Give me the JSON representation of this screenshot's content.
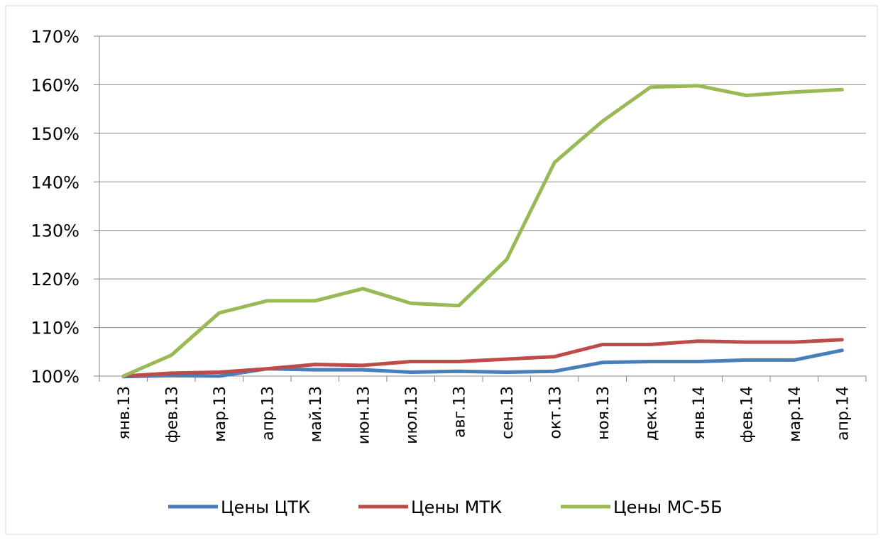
{
  "chart_data": {
    "type": "line",
    "categories": [
      "янв.13",
      "фев.13",
      "мар.13",
      "апр.13",
      "май.13",
      "июн.13",
      "июл.13",
      "авг.13",
      "сен.13",
      "окт.13",
      "ноя.13",
      "дек.13",
      "янв.14",
      "фев.14",
      "мар.14",
      "апр.14"
    ],
    "series": [
      {
        "name": "Цены ЦТК",
        "color": "#4a7ebb",
        "values": [
          99.9,
          100.1,
          100,
          101.5,
          101.3,
          101.3,
          100.8,
          101,
          100.8,
          101,
          102.8,
          103,
          103,
          103.3,
          103.3,
          105.3
        ]
      },
      {
        "name": "Цены МТК",
        "color": "#be4b48",
        "values": [
          100,
          100.6,
          100.8,
          101.5,
          102.4,
          102.2,
          103,
          103,
          103.5,
          104,
          106.5,
          106.5,
          107.2,
          107,
          107,
          107.5
        ]
      },
      {
        "name": "Цены МС-5Б",
        "color": "#98b954",
        "values": [
          100,
          104.3,
          113,
          115.5,
          115.5,
          118,
          115,
          114.5,
          124,
          144,
          152.5,
          159.5,
          159.8,
          157.8,
          158.5,
          159
        ]
      }
    ],
    "ylim": [
      100,
      170
    ],
    "yticks": [
      {
        "value": 100,
        "label": "100%"
      },
      {
        "value": 110,
        "label": "110%"
      },
      {
        "value": 120,
        "label": "120%"
      },
      {
        "value": 130,
        "label": "130%"
      },
      {
        "value": 140,
        "label": "140%"
      },
      {
        "value": 150,
        "label": "150%"
      },
      {
        "value": 160,
        "label": "160%"
      },
      {
        "value": 170,
        "label": "170%"
      }
    ],
    "grid": true,
    "legend": "bottom"
  }
}
